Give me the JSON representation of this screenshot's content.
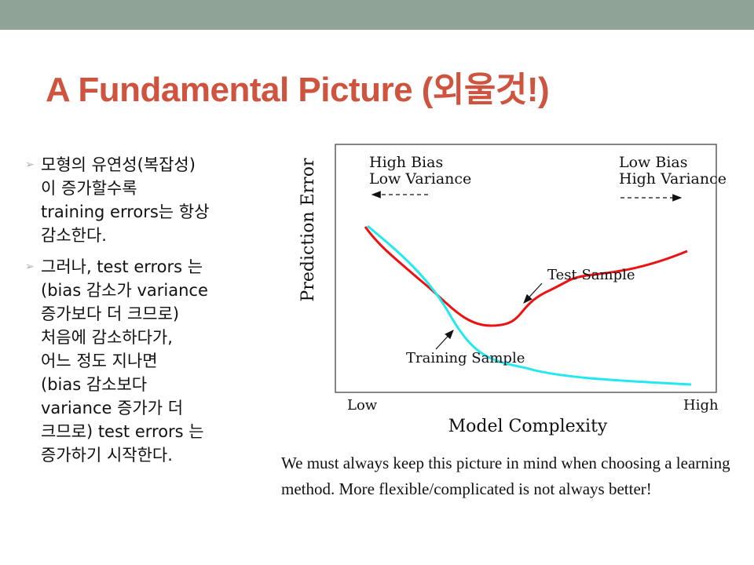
{
  "slide": {
    "title": "A Fundamental Picture (외울것!)",
    "bullets": [
      "모형의 유연성(복잡성)\n이 증가할수록\ntraining errors는 항상\n감소한다.",
      "그러나, test errors 는\n(bias 감소가 variance\n증가보다 더 크므로)\n처음에 감소하다가,\n어느 정도 지나면\n(bias 감소보다\nvariance 증가가 더\n크므로) test errors 는\n증가하기 시작한다."
    ],
    "caption": "We must always keep this picture in mind when choosing a learning method. More flexible/complicated is not always better!"
  },
  "figure": {
    "ylabel": "Prediction Error",
    "xlabel": "Model Complexity",
    "x_low": "Low",
    "x_high": "High",
    "left_note": [
      "High Bias",
      "Low Variance"
    ],
    "right_note": [
      "Low Bias",
      "High Variance"
    ],
    "test_label": "Test Sample",
    "train_label": "Training Sample",
    "colors": {
      "test": "#ee1111",
      "train": "#22e8f0",
      "bar": "#8fa396",
      "title": "#cf543f"
    }
  }
}
